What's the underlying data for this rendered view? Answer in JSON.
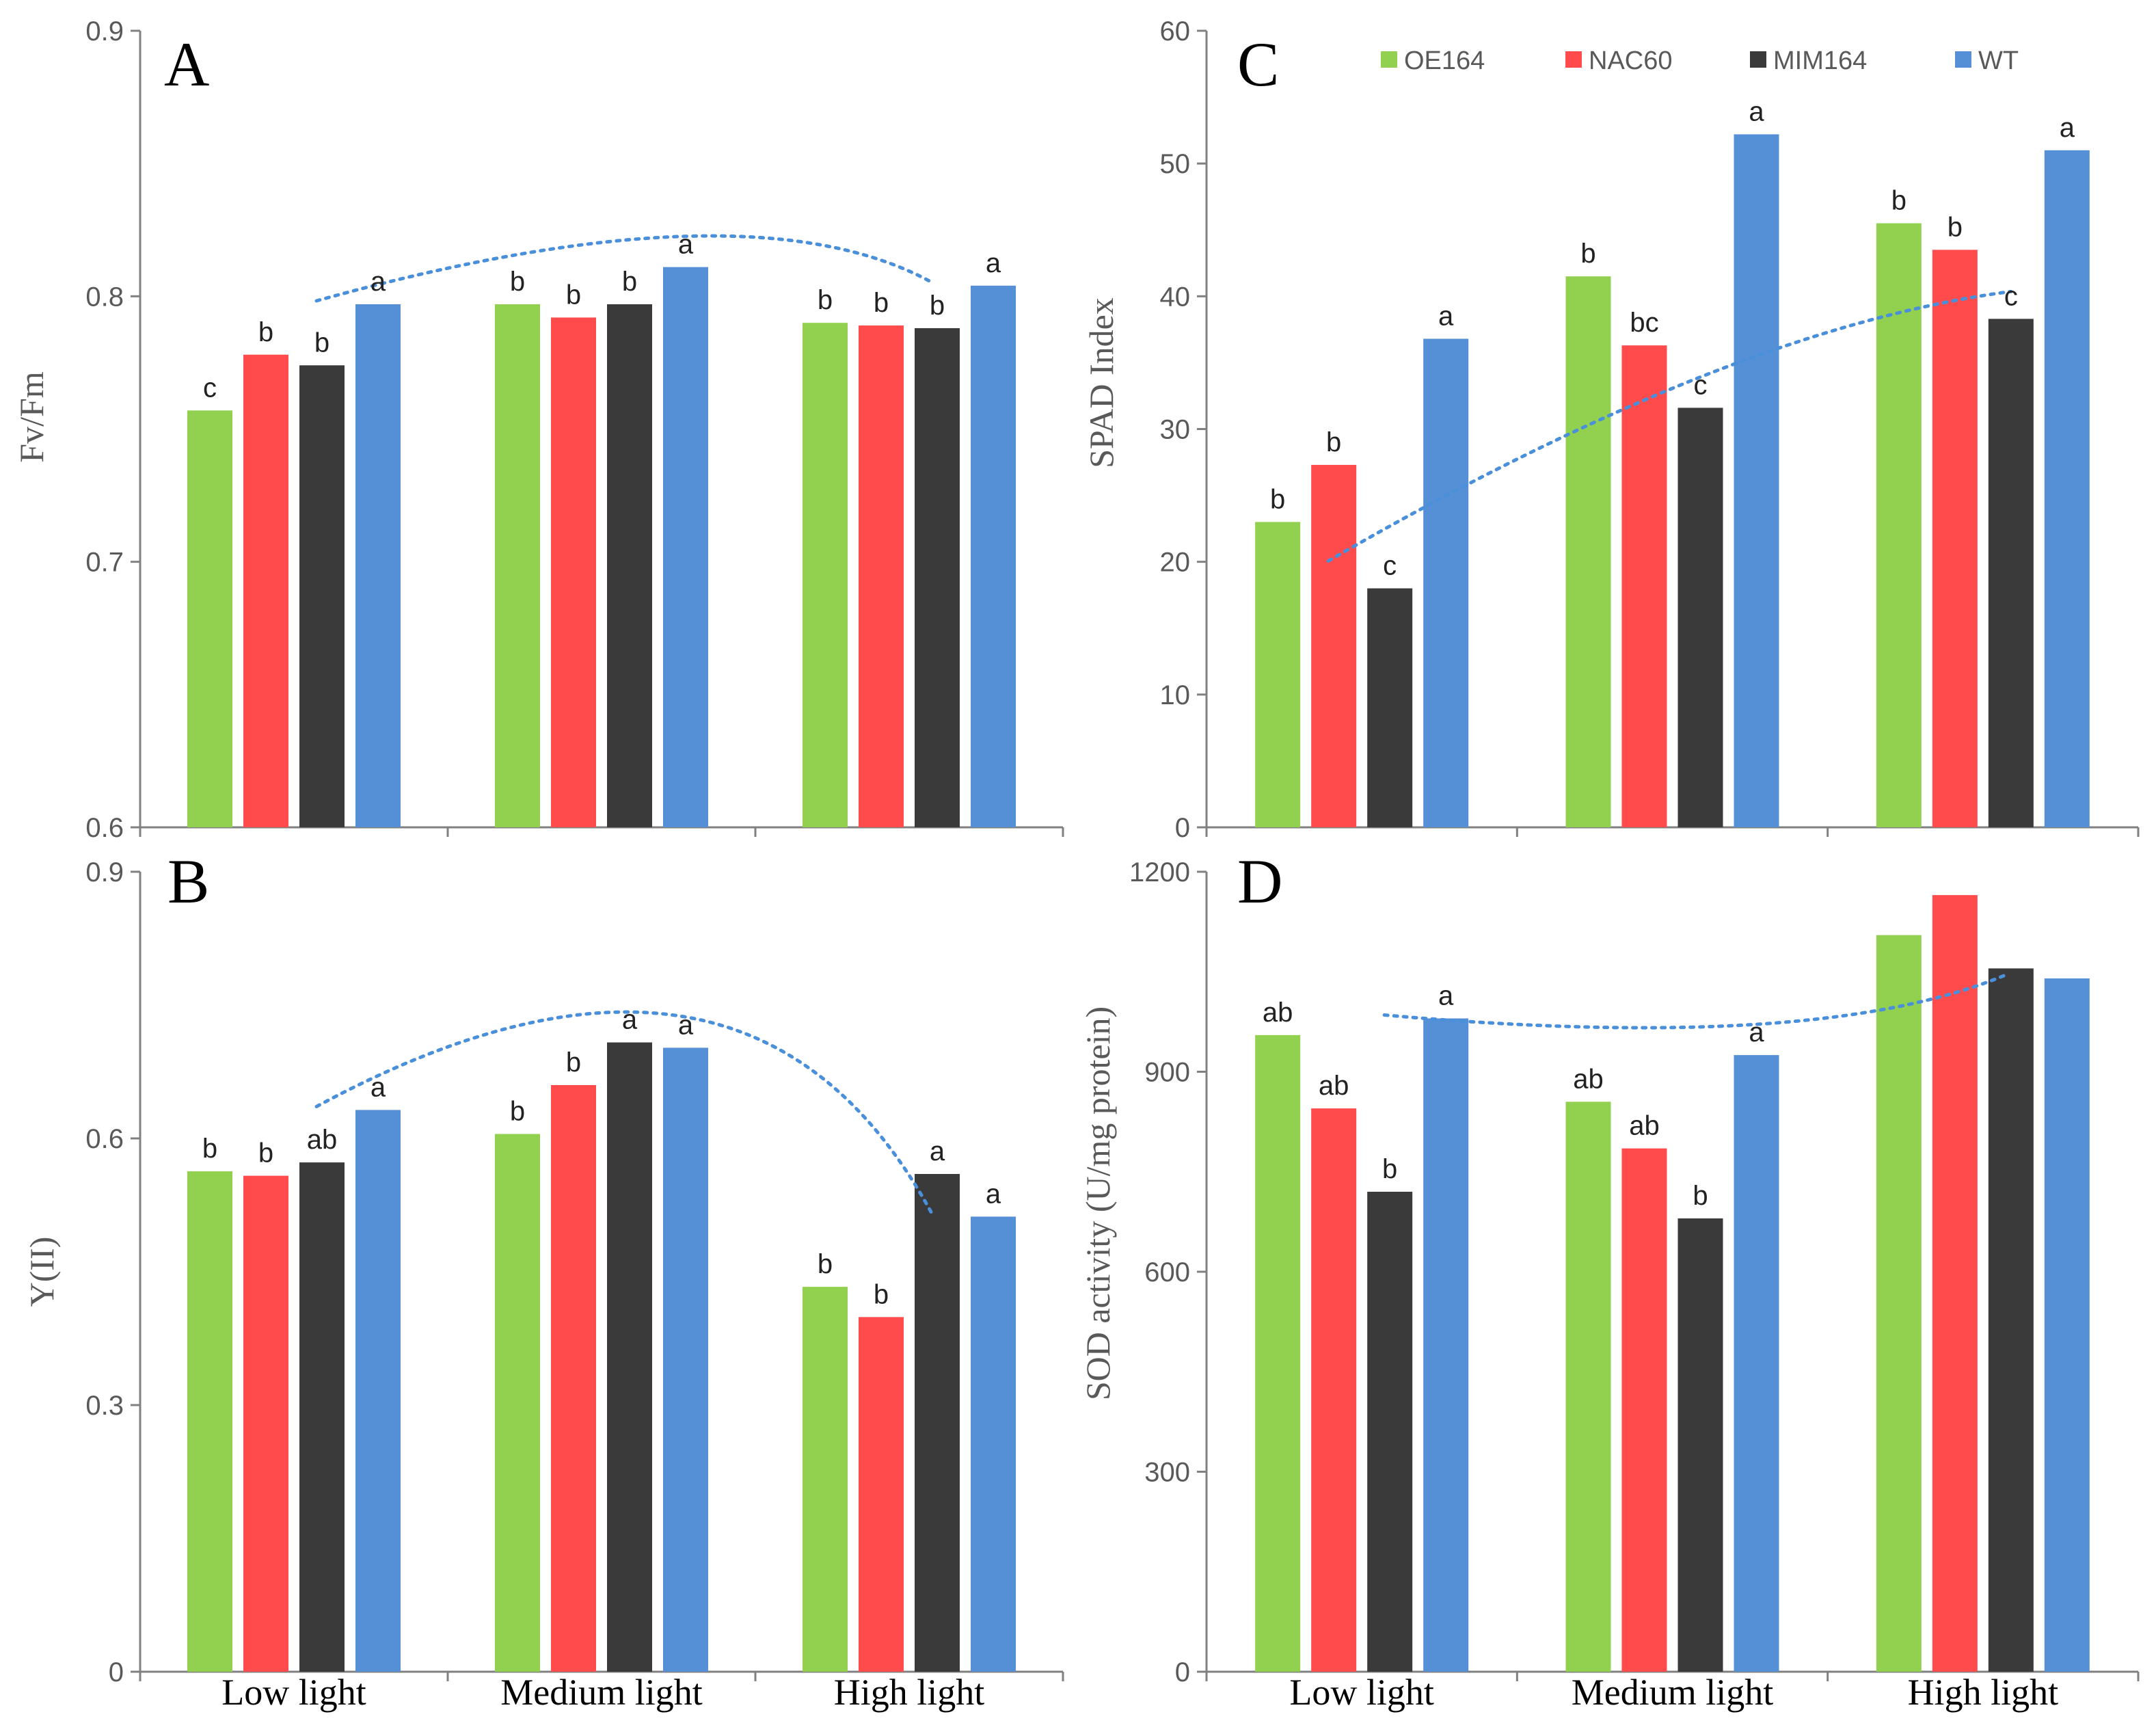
{
  "colors": {
    "OE164": "#92d050",
    "NAC60": "#ff4b4b",
    "MIM164": "#3a3a3a",
    "WT": "#5590d6",
    "trend": "#4a8fd9"
  },
  "chart_data": [
    {
      "id": "A",
      "type": "bar",
      "panel_label": "A",
      "ylabel": "Fv/Fm",
      "xlabel": "",
      "ylim": [
        0.6,
        0.9
      ],
      "yticks": [
        "0.6",
        "0.7",
        "0.8",
        "0.9"
      ],
      "categories": [
        "Low light",
        "Medium light",
        "High light"
      ],
      "show_category_labels": false,
      "legend": false,
      "series": [
        {
          "name": "OE164",
          "values": [
            0.757,
            0.797,
            0.79
          ],
          "labels": [
            "c",
            "b",
            "b"
          ]
        },
        {
          "name": "NAC60",
          "values": [
            0.778,
            0.792,
            0.789
          ],
          "labels": [
            "b",
            "b",
            "b"
          ]
        },
        {
          "name": "MIM164",
          "values": [
            0.774,
            0.797,
            0.788
          ],
          "labels": [
            "b",
            "b",
            "b"
          ]
        },
        {
          "name": "WT",
          "values": [
            0.797,
            0.811,
            0.804
          ],
          "labels": [
            "a",
            "a",
            "a"
          ]
        }
      ],
      "trend_line": {
        "values": [
          0.797,
          0.811,
          0.804
        ],
        "style": "dotted",
        "shape": "arc"
      }
    },
    {
      "id": "C",
      "type": "bar",
      "panel_label": "C",
      "ylabel": "SPAD Index",
      "xlabel": "",
      "ylim": [
        0,
        60
      ],
      "yticks": [
        "0",
        "10",
        "20",
        "30",
        "40",
        "50",
        "60"
      ],
      "categories": [
        "Low light",
        "Medium light",
        "High light"
      ],
      "show_category_labels": false,
      "legend": true,
      "legend_position": "top",
      "series": [
        {
          "name": "OE164",
          "values": [
            23.0,
            41.5,
            45.5
          ],
          "labels": [
            "b",
            "b",
            "b"
          ]
        },
        {
          "name": "NAC60",
          "values": [
            27.3,
            36.3,
            43.5
          ],
          "labels": [
            "b",
            "bc",
            "b"
          ]
        },
        {
          "name": "MIM164",
          "values": [
            18.0,
            31.6,
            38.3
          ],
          "labels": [
            "c",
            "c",
            "c"
          ]
        },
        {
          "name": "WT",
          "values": [
            36.8,
            52.2,
            51.0
          ],
          "labels": [
            "a",
            "a",
            "a"
          ]
        }
      ],
      "trend_line": {
        "values": [
          18.0,
          31.6,
          38.3
        ],
        "style": "dotted",
        "shape": "rising"
      }
    },
    {
      "id": "B",
      "type": "bar",
      "panel_label": "B",
      "ylabel": "Y(II)",
      "xlabel": "",
      "ylim": [
        0,
        0.9
      ],
      "yticks": [
        "0",
        "0.3",
        "0.6",
        "0.9"
      ],
      "categories": [
        "Low light",
        "Medium light",
        "High light"
      ],
      "show_category_labels": true,
      "legend": false,
      "series": [
        {
          "name": "OE164",
          "values": [
            0.563,
            0.605,
            0.433
          ],
          "labels": [
            "b",
            "b",
            "b"
          ]
        },
        {
          "name": "NAC60",
          "values": [
            0.558,
            0.66,
            0.399
          ],
          "labels": [
            "b",
            "b",
            "b"
          ]
        },
        {
          "name": "MIM164",
          "values": [
            0.573,
            0.708,
            0.56
          ],
          "labels": [
            "ab",
            "a",
            "a"
          ]
        },
        {
          "name": "WT",
          "values": [
            0.632,
            0.702,
            0.512
          ],
          "labels": [
            "a",
            "a",
            "a"
          ]
        }
      ],
      "trend_line": {
        "values": [
          0.632,
          0.702,
          0.512
        ],
        "style": "dotted",
        "shape": "arc"
      }
    },
    {
      "id": "D",
      "type": "bar",
      "panel_label": "D",
      "ylabel": "SOD activity (U/mg protein)",
      "xlabel": "",
      "ylim": [
        0,
        1200
      ],
      "yticks": [
        "0",
        "300",
        "600",
        "900",
        "1200"
      ],
      "categories": [
        "Low light",
        "Medium light",
        "High light"
      ],
      "show_category_labels": true,
      "legend": false,
      "series": [
        {
          "name": "OE164",
          "values": [
            955,
            855,
            1105
          ],
          "labels": [
            "ab",
            "ab",
            ""
          ]
        },
        {
          "name": "NAC60",
          "values": [
            845,
            785,
            1165
          ],
          "labels": [
            "ab",
            "ab",
            ""
          ]
        },
        {
          "name": "MIM164",
          "values": [
            720,
            680,
            1055
          ],
          "labels": [
            "b",
            "b",
            ""
          ]
        },
        {
          "name": "WT",
          "values": [
            980,
            925,
            1040
          ],
          "labels": [
            "a",
            "a",
            ""
          ]
        }
      ],
      "trend_line": {
        "values": [
          980,
          925,
          1040
        ],
        "style": "dotted",
        "shape": "valley"
      }
    }
  ]
}
